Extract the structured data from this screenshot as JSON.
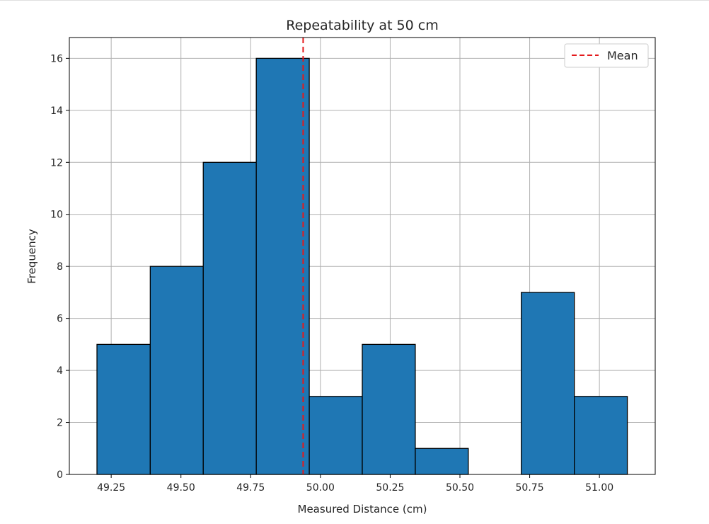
{
  "chart_data": {
    "type": "bar",
    "title": "Repeatability at 50 cm",
    "xlabel": "Measured Distance (cm)",
    "ylabel": "Frequency",
    "bin_edges": [
      49.199,
      49.39,
      49.58,
      49.77,
      49.96,
      50.15,
      50.34,
      50.53,
      50.72,
      50.91,
      51.1
    ],
    "values": [
      5,
      8,
      12,
      16,
      3,
      5,
      1,
      0,
      7,
      3
    ],
    "xlim": [
      49.1,
      51.2
    ],
    "ylim": [
      0,
      16.8
    ],
    "xticks": [
      "49.25",
      "49.50",
      "49.75",
      "50.00",
      "50.25",
      "50.50",
      "50.75",
      "51.00"
    ],
    "yticks": [
      "0",
      "2",
      "4",
      "6",
      "8",
      "10",
      "12",
      "14",
      "16"
    ],
    "mean": 49.938,
    "grid": true,
    "legend": {
      "position": "top-right",
      "entries": [
        "Mean"
      ]
    },
    "colors": {
      "bar": "#1f77b4",
      "edge": "#000000",
      "mean_line": "#e41a1c",
      "grid": "#b0b0b0"
    }
  }
}
